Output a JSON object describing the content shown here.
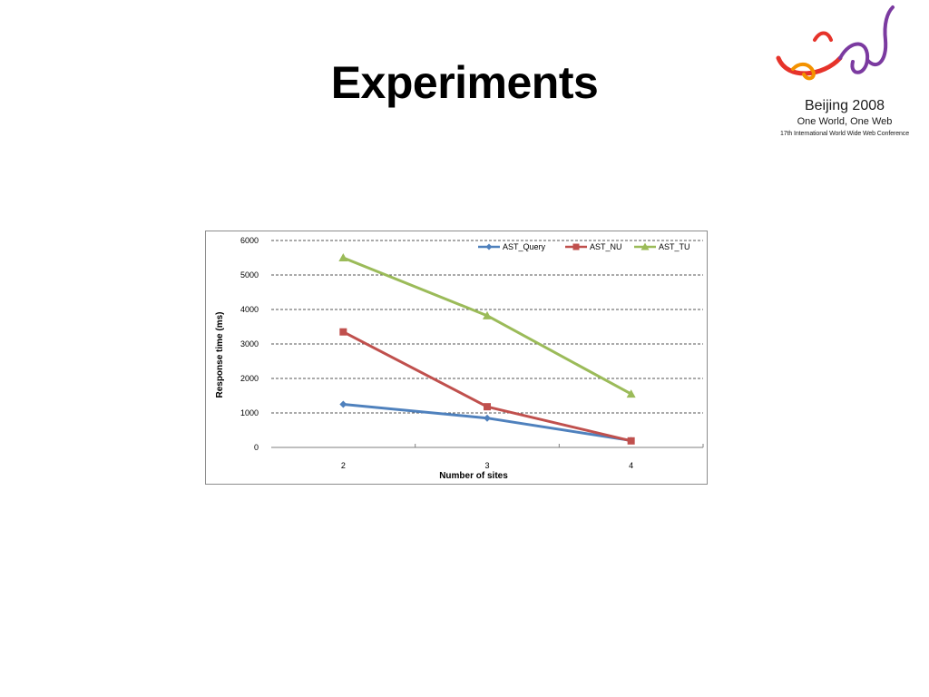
{
  "slide": {
    "title": "Experiments"
  },
  "logo": {
    "line1": "Beijing 2008",
    "line2": "One World, One Web",
    "line3": "17th International World Wide Web Conference",
    "colors": [
      "#7b3aa0",
      "#e6332a",
      "#f39200"
    ]
  },
  "chart_data": {
    "type": "line",
    "xlabel": "Number of sites",
    "ylabel": "Response time (ms)",
    "categories": [
      "2",
      "3",
      "4"
    ],
    "ylim": [
      0,
      6000
    ],
    "yticks": [
      0,
      1000,
      2000,
      3000,
      4000,
      5000,
      6000
    ],
    "grid": true,
    "legend_position": "top-right",
    "series": [
      {
        "name": "AST_Query",
        "values": [
          1250,
          850,
          200
        ],
        "color": "#4f81bd",
        "marker": "diamond"
      },
      {
        "name": "AST_NU",
        "values": [
          3350,
          1180,
          190
        ],
        "color": "#c0504d",
        "marker": "square"
      },
      {
        "name": "AST_TU",
        "values": [
          5500,
          3820,
          1550
        ],
        "color": "#9bbb59",
        "marker": "triangle"
      }
    ]
  }
}
